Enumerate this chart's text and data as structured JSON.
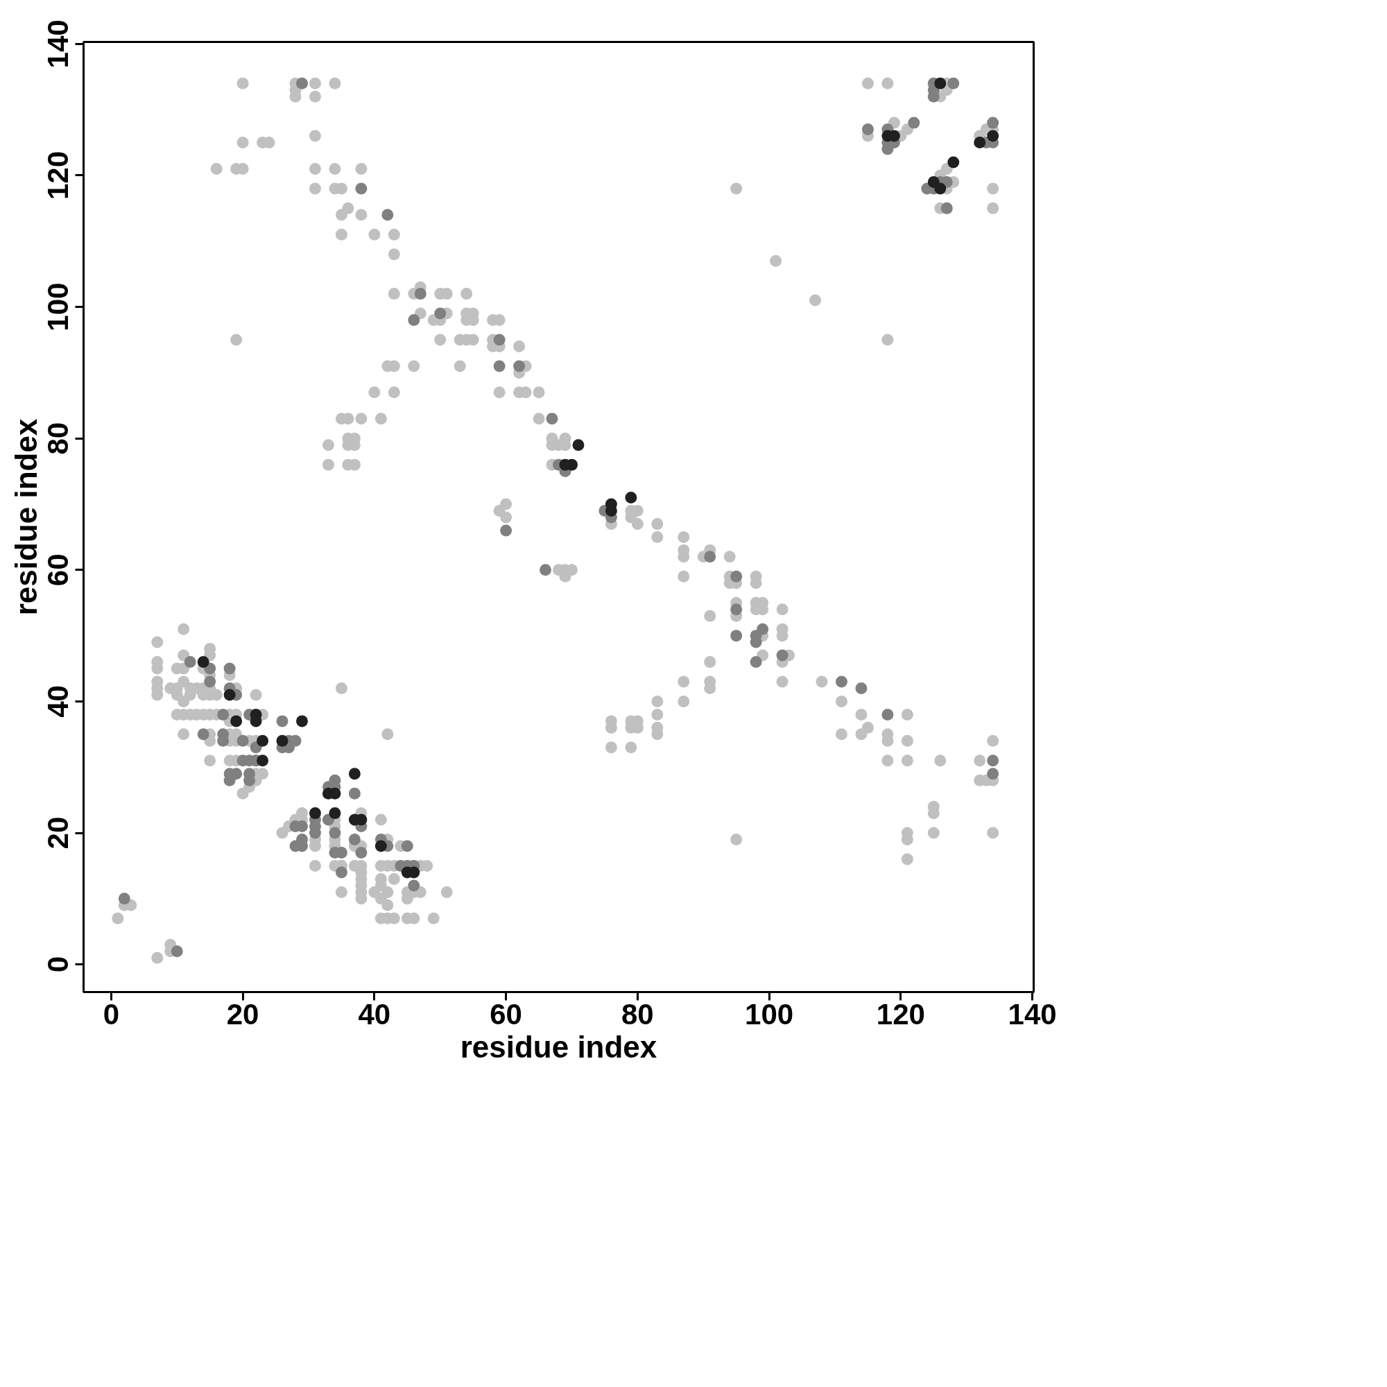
{
  "chart_data": {
    "type": "scatter",
    "xlabel": "residue index",
    "ylabel": "residue index",
    "xlim": [
      -4.2,
      140.2
    ],
    "ylim": [
      -4.2,
      140.3
    ],
    "xticks": [
      0,
      20,
      40,
      60,
      80,
      100,
      120,
      140
    ],
    "yticks": [
      0,
      20,
      40,
      60,
      80,
      100,
      120,
      140
    ],
    "grid": false,
    "marker": "circle",
    "series": [
      {
        "color": "#c0c0c0",
        "x": [
          20,
          28,
          28,
          28,
          31,
          31,
          34,
          31,
          20,
          23,
          24,
          16,
          19,
          20,
          31,
          34,
          38,
          31,
          34,
          35,
          36,
          35,
          38,
          35,
          40,
          43,
          43,
          43,
          46,
          47,
          50,
          51,
          54,
          47,
          51,
          54,
          55,
          49,
          50,
          54,
          55,
          58,
          59,
          50,
          53,
          54,
          55,
          58,
          58,
          59,
          62,
          19,
          42,
          43,
          46,
          53,
          63,
          62,
          40,
          43,
          59,
          62,
          63,
          65,
          35,
          36,
          38,
          41,
          65,
          36,
          37,
          67,
          69,
          33,
          36,
          37,
          67,
          68,
          69,
          33,
          36,
          37,
          67,
          59,
          60,
          60,
          76,
          79,
          80,
          79,
          80,
          83,
          83,
          87,
          87,
          87,
          90,
          91,
          94,
          87,
          94,
          98,
          94,
          95,
          98,
          68,
          69,
          70,
          69,
          95,
          98,
          99,
          98,
          99,
          102,
          91,
          95,
          102,
          99,
          102,
          99,
          103,
          102,
          91,
          87,
          91,
          102,
          108,
          91,
          87,
          83,
          111,
          83,
          114,
          121,
          76,
          79,
          80,
          76,
          79,
          80,
          83,
          115,
          83,
          111,
          114,
          118,
          118,
          121,
          134,
          76,
          79,
          118,
          121,
          126,
          132,
          132,
          133,
          134,
          125,
          125,
          121,
          125,
          134,
          121,
          95,
          121,
          35,
          42,
          95,
          101,
          107,
          118,
          115,
          118,
          127,
          127,
          126,
          115,
          119,
          120,
          121,
          132,
          133,
          134,
          127,
          126,
          127,
          128,
          126,
          134,
          134,
          7,
          11,
          7,
          7,
          7,
          7,
          7,
          10,
          11,
          11,
          15,
          15,
          14,
          15,
          18,
          9,
          10,
          10,
          11,
          11,
          12,
          12,
          13,
          14,
          14,
          15,
          15,
          16,
          19,
          22,
          10,
          11,
          12,
          13,
          14,
          15,
          16,
          18,
          19,
          23,
          18,
          11,
          15,
          15,
          18,
          18,
          19,
          19,
          21,
          22,
          15,
          18,
          19,
          22,
          23,
          22,
          21,
          20,
          38,
          31,
          31,
          29,
          29,
          28,
          27,
          26,
          31,
          34,
          34,
          34,
          34,
          35,
          38,
          37,
          34,
          35,
          35,
          37,
          38,
          38,
          38,
          38,
          38,
          38,
          40,
          41,
          41,
          42,
          42,
          41,
          42,
          43,
          41,
          43,
          41,
          42,
          44,
          47,
          48,
          45,
          46,
          47,
          45,
          51,
          41,
          42,
          43,
          45,
          46,
          49,
          1,
          2,
          3,
          7,
          9,
          9
        ],
        "values": [
          134,
          134,
          133,
          132,
          134,
          132,
          134,
          126,
          125,
          125,
          125,
          121,
          121,
          121,
          121,
          121,
          121,
          118,
          118,
          118,
          115,
          114,
          114,
          111,
          111,
          111,
          108,
          102,
          102,
          103,
          102,
          102,
          102,
          99,
          99,
          99,
          99,
          98,
          98,
          98,
          98,
          98,
          98,
          95,
          95,
          95,
          95,
          95,
          94,
          94,
          94,
          95,
          91,
          91,
          91,
          91,
          91,
          90,
          87,
          87,
          87,
          87,
          87,
          87,
          83,
          83,
          83,
          83,
          83,
          80,
          80,
          80,
          80,
          79,
          79,
          79,
          79,
          79,
          79,
          76,
          76,
          76,
          76,
          69,
          70,
          68,
          67,
          69,
          69,
          68,
          67,
          67,
          65,
          65,
          63,
          62,
          62,
          63,
          62,
          59,
          59,
          59,
          58,
          58,
          58,
          60,
          60,
          60,
          59,
          55,
          55,
          55,
          54,
          54,
          54,
          53,
          53,
          51,
          50,
          50,
          47,
          47,
          46,
          46,
          43,
          43,
          43,
          43,
          42,
          40,
          40,
          40,
          38,
          38,
          38,
          37,
          37,
          37,
          36,
          36,
          36,
          36,
          36,
          35,
          35,
          35,
          35,
          34,
          34,
          34,
          33,
          33,
          31,
          31,
          31,
          31,
          28,
          28,
          28,
          24,
          23,
          20,
          20,
          20,
          19,
          19,
          16,
          42,
          35,
          118,
          107,
          101,
          95,
          134,
          134,
          134,
          133,
          132,
          126,
          128,
          126,
          127,
          126,
          127,
          127,
          121,
          120,
          118,
          119,
          115,
          118,
          115,
          49,
          51,
          46,
          45,
          43,
          42,
          41,
          45,
          47,
          45,
          48,
          47,
          45,
          44,
          44,
          42,
          42,
          41,
          43,
          40,
          42,
          41,
          42,
          42,
          41,
          42,
          41,
          41,
          42,
          41,
          38,
          38,
          38,
          38,
          38,
          38,
          38,
          38,
          38,
          38,
          37,
          35,
          35,
          34,
          35,
          34,
          35,
          34,
          34,
          34,
          31,
          31,
          31,
          29,
          29,
          28,
          27,
          26,
          23,
          19,
          18,
          23,
          22,
          22,
          21,
          20,
          15,
          22,
          21,
          19,
          18,
          15,
          18,
          18,
          15,
          15,
          11,
          15,
          15,
          14,
          13,
          12,
          11,
          10,
          11,
          12,
          10,
          11,
          9,
          15,
          15,
          15,
          13,
          13,
          22,
          19,
          18,
          15,
          15,
          11,
          11,
          11,
          10,
          11,
          7,
          7,
          7,
          7,
          7,
          7,
          7,
          9,
          9,
          1,
          3,
          2
        ]
      },
      {
        "color": "#808080",
        "x": [
          29,
          38,
          42,
          47,
          50,
          46,
          59,
          59,
          62,
          67,
          68,
          69,
          60,
          75,
          76,
          91,
          95,
          66,
          95,
          99,
          95,
          98,
          98,
          102,
          98,
          111,
          114,
          118,
          134,
          134,
          125,
          128,
          125,
          125,
          115,
          118,
          122,
          118,
          119,
          118,
          134,
          133,
          134,
          124,
          125,
          126,
          127,
          127,
          12,
          15,
          15,
          18,
          18,
          19,
          21,
          17,
          14,
          17,
          17,
          20,
          22,
          22,
          20,
          21,
          22,
          18,
          19,
          21,
          18,
          21,
          26,
          27,
          28,
          26,
          27,
          33,
          34,
          34,
          37,
          38,
          33,
          31,
          31,
          31,
          28,
          29,
          29,
          28,
          29,
          34,
          35,
          34,
          37,
          38,
          35,
          41,
          42,
          45,
          44,
          45,
          46,
          46,
          2,
          10
        ],
        "values": [
          134,
          118,
          114,
          102,
          99,
          98,
          95,
          91,
          91,
          83,
          76,
          75,
          66,
          69,
          68,
          62,
          59,
          60,
          54,
          51,
          50,
          50,
          49,
          47,
          46,
          43,
          42,
          38,
          31,
          29,
          134,
          134,
          133,
          132,
          127,
          127,
          128,
          125,
          125,
          124,
          128,
          125,
          125,
          118,
          118,
          119,
          119,
          115,
          46,
          45,
          43,
          45,
          42,
          41,
          38,
          38,
          35,
          35,
          34,
          34,
          33,
          31,
          31,
          31,
          31,
          29,
          29,
          29,
          28,
          28,
          37,
          34,
          34,
          33,
          33,
          27,
          28,
          27,
          26,
          21,
          22,
          22,
          21,
          20,
          21,
          21,
          19,
          18,
          18,
          20,
          17,
          17,
          19,
          17,
          14,
          19,
          18,
          18,
          15,
          15,
          15,
          12,
          10,
          2
        ]
      },
      {
        "color": "#202020",
        "x": [
          71,
          69,
          70,
          76,
          76,
          79,
          126,
          118,
          119,
          134,
          132,
          128,
          125,
          126,
          14,
          18,
          22,
          19,
          22,
          23,
          23,
          29,
          26,
          31,
          33,
          34,
          37,
          34,
          37,
          38,
          41,
          45,
          46
        ],
        "values": [
          79,
          76,
          76,
          70,
          69,
          71,
          134,
          126,
          126,
          126,
          125,
          122,
          119,
          118,
          46,
          41,
          38,
          37,
          37,
          34,
          31,
          37,
          34,
          23,
          26,
          26,
          29,
          23,
          22,
          22,
          18,
          14,
          14
        ]
      }
    ]
  }
}
